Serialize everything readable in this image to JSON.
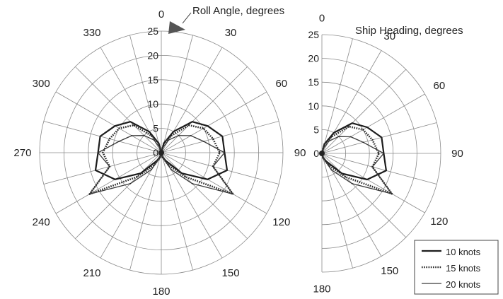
{
  "chart_data": [
    {
      "type": "polar-line",
      "panel": "full",
      "annotation": "Roll Angle, degrees",
      "radial_ticks": [
        0,
        5,
        10,
        15,
        20,
        25
      ],
      "rlim": [
        0,
        25
      ],
      "angular_ticks": [
        0,
        30,
        60,
        90,
        120,
        150,
        180,
        210,
        240,
        270,
        300,
        330
      ],
      "angles": [
        0,
        15,
        30,
        45,
        60,
        75,
        90,
        105,
        120,
        135,
        150,
        165,
        180,
        195,
        210,
        225,
        240,
        255,
        270,
        285,
        300,
        315,
        330,
        345
      ],
      "series": [
        {
          "name": "10 knots",
          "values": [
            0,
            2,
            5,
            9,
            11,
            13,
            13,
            14,
            11,
            6,
            2,
            1,
            0,
            1,
            2,
            6,
            11,
            14,
            13,
            13,
            11,
            9,
            5,
            2
          ]
        },
        {
          "name": "15 knots",
          "values": [
            0,
            2,
            4,
            8,
            10,
            11,
            12,
            11,
            17,
            7,
            3,
            1,
            0,
            1,
            3,
            7,
            17,
            11,
            12,
            11,
            10,
            8,
            4,
            2
          ]
        },
        {
          "name": "20 knots",
          "values": [
            0,
            1,
            3,
            5,
            7,
            9,
            13,
            11,
            17,
            9,
            4,
            1,
            0,
            1,
            4,
            9,
            17,
            11,
            13,
            9,
            7,
            5,
            3,
            1
          ]
        }
      ]
    },
    {
      "type": "polar-line",
      "panel": "half",
      "annotation": "Ship Heading, degrees",
      "radial_ticks": [
        0,
        5,
        10,
        15,
        20,
        25
      ],
      "rlim": [
        0,
        25
      ],
      "angular_ticks": [
        0,
        30,
        60,
        90,
        120,
        150,
        180
      ],
      "angles": [
        0,
        15,
        30,
        45,
        60,
        75,
        90,
        105,
        120,
        135,
        150,
        165,
        180
      ],
      "series": [
        {
          "name": "10 knots",
          "values": [
            0,
            2,
            5,
            9,
            11,
            13,
            13,
            14,
            11,
            6,
            2,
            1,
            0
          ]
        },
        {
          "name": "15 knots",
          "values": [
            0,
            2,
            4,
            8,
            10,
            11,
            12,
            11,
            17,
            7,
            3,
            1,
            0
          ]
        },
        {
          "name": "20 knots",
          "values": [
            0,
            1,
            3,
            5,
            7,
            9,
            13,
            11,
            17,
            9,
            4,
            1,
            0
          ]
        }
      ]
    }
  ],
  "legend": {
    "placement": "bottom-right",
    "items": [
      {
        "label": "10 knots",
        "style": "solid-thick"
      },
      {
        "label": "15 knots",
        "style": "dotted"
      },
      {
        "label": "20 knots",
        "style": "solid-thin"
      }
    ]
  }
}
